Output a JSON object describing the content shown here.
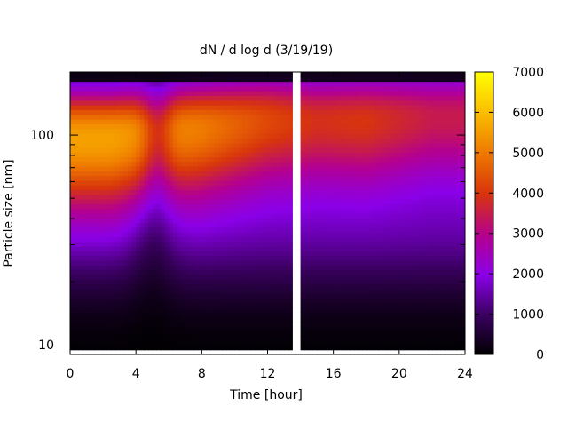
{
  "chart_data": {
    "type": "heatmap",
    "title": "dN / d log d (3/19/19)",
    "xlabel": "Time [hour]",
    "ylabel": "Particle size [nm]",
    "x_range": [
      0,
      24
    ],
    "x_ticks": [
      "0",
      "4",
      "8",
      "12",
      "16",
      "20",
      "24"
    ],
    "y_scale": "log",
    "y_range": [
      9,
      200
    ],
    "y_ticks": [
      "10",
      "100"
    ],
    "colorbar": {
      "range": [
        0,
        7000
      ],
      "ticks": [
        "0",
        "1000",
        "2000",
        "3000",
        "4000",
        "5000",
        "6000",
        "7000"
      ],
      "palette": "gnuplot (black-purple-red-orange-yellow)"
    },
    "data_gap_hours": [
      13.6,
      14.0
    ],
    "mode_peaks": [
      {
        "time_h": 2.5,
        "diameter_nm": 100,
        "value": 5400
      },
      {
        "time_h": 8.0,
        "diameter_nm": 110,
        "value": 4900
      },
      {
        "time_h": 12.0,
        "diameter_nm": 120,
        "value": 4200
      },
      {
        "time_h": 15.0,
        "diameter_nm": 120,
        "value": 3800
      },
      {
        "time_h": 18.0,
        "diameter_nm": 120,
        "value": 3900
      },
      {
        "time_h": 22.0,
        "diameter_nm": 125,
        "value": 3400
      }
    ]
  }
}
